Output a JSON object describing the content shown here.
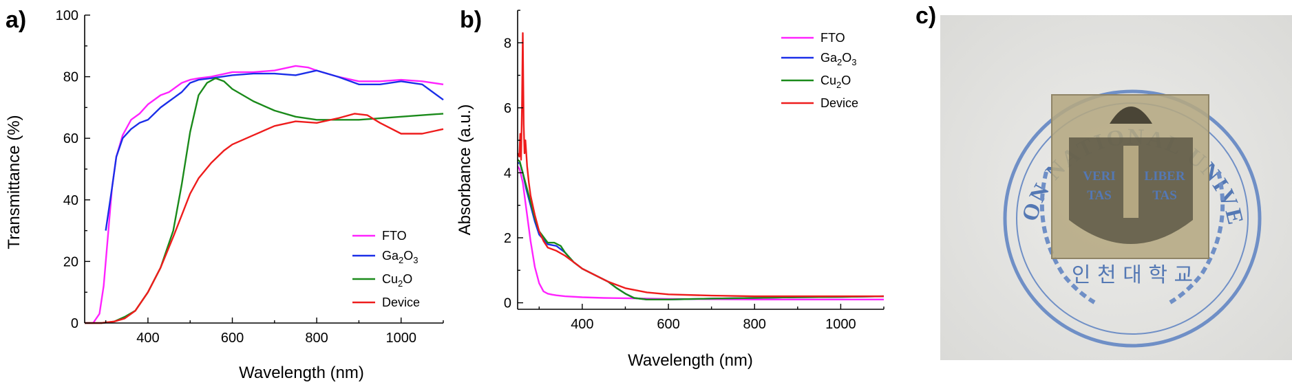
{
  "panel_labels": {
    "a": "a)",
    "b": "b)",
    "c": "c)"
  },
  "colors": {
    "FTO": "#ff22ff",
    "Ga2O3": "#1a2ee8",
    "Cu2O": "#1a8a1a",
    "Device": "#ee1c1c"
  },
  "chart_data": [
    {
      "type": "line",
      "panel": "a)",
      "xlabel": "Wavelength (nm)",
      "ylabel": "Transmittance (%)",
      "xlim": [
        250,
        1100
      ],
      "ylim": [
        0,
        100
      ],
      "xticks": [
        400,
        600,
        800,
        1000
      ],
      "yticks": [
        0,
        20,
        40,
        60,
        80,
        100
      ],
      "legend_position": "bottom-right",
      "series": [
        {
          "name": "FTO",
          "color": "#ff22ff",
          "x": [
            250,
            270,
            285,
            295,
            305,
            315,
            325,
            340,
            360,
            380,
            400,
            430,
            450,
            480,
            500,
            520,
            550,
            600,
            650,
            700,
            750,
            780,
            800,
            850,
            900,
            950,
            1000,
            1050,
            1100
          ],
          "y": [
            0,
            0,
            3,
            12,
            28,
            44,
            54,
            61,
            66,
            68,
            71,
            74,
            75,
            78,
            79,
            79.5,
            80,
            81.5,
            81.5,
            82,
            83.5,
            83,
            82,
            80,
            78.5,
            78.5,
            79,
            78.5,
            77.5
          ]
        },
        {
          "name": "Ga2O3",
          "color": "#1a2ee8",
          "x": [
            300,
            315,
            325,
            340,
            360,
            380,
            400,
            430,
            450,
            480,
            500,
            520,
            550,
            600,
            650,
            700,
            750,
            800,
            850,
            900,
            950,
            1000,
            1050,
            1100
          ],
          "y": [
            30,
            44,
            54,
            60,
            63,
            65,
            66,
            70,
            72,
            75,
            78,
            79,
            79.5,
            80.5,
            81,
            81,
            80.5,
            82,
            80,
            77.5,
            77.5,
            78.5,
            77.5,
            72.5
          ]
        },
        {
          "name": "Cu2O",
          "color": "#1a8a1a",
          "x": [
            250,
            290,
            320,
            345,
            370,
            400,
            430,
            460,
            480,
            500,
            520,
            540,
            560,
            580,
            600,
            650,
            700,
            750,
            800,
            850,
            900,
            950,
            1000,
            1050,
            1100
          ],
          "y": [
            0,
            0,
            0.5,
            2,
            4,
            10,
            18,
            30,
            45,
            62,
            74,
            78,
            79.5,
            78.5,
            76,
            72,
            69,
            67,
            66,
            66,
            66,
            66.5,
            67,
            67.5,
            68
          ]
        },
        {
          "name": "Device",
          "color": "#ee1c1c",
          "x": [
            250,
            290,
            320,
            345,
            370,
            400,
            430,
            460,
            480,
            500,
            520,
            550,
            580,
            600,
            650,
            700,
            750,
            800,
            850,
            890,
            920,
            950,
            1000,
            1050,
            1100
          ],
          "y": [
            0,
            0,
            0.5,
            1.5,
            4,
            10,
            18,
            28,
            35,
            42,
            47,
            52,
            56,
            58,
            61,
            64,
            65.5,
            65,
            66.5,
            68,
            67.5,
            65,
            61.5,
            61.5,
            63
          ]
        }
      ]
    },
    {
      "type": "line",
      "panel": "b)",
      "xlabel": "Wavelength (nm)",
      "ylabel": "Absorbance (a.u.)",
      "xlim": [
        250,
        1100
      ],
      "ylim": [
        -0.2,
        9
      ],
      "xticks": [
        400,
        600,
        800,
        1000
      ],
      "yticks": [
        0,
        2,
        4,
        6,
        8
      ],
      "legend_position": "top-right",
      "series": [
        {
          "name": "FTO",
          "color": "#ff22ff",
          "x": [
            250,
            255,
            262,
            270,
            280,
            290,
            300,
            310,
            320,
            330,
            340,
            360,
            400,
            450,
            500,
            600,
            700,
            800,
            900,
            1000,
            1100
          ],
          "y": [
            4.2,
            4.1,
            3.7,
            2.9,
            1.9,
            1.1,
            0.6,
            0.35,
            0.28,
            0.25,
            0.23,
            0.2,
            0.17,
            0.15,
            0.14,
            0.12,
            0.11,
            0.1,
            0.1,
            0.1,
            0.1
          ]
        },
        {
          "name": "Ga2O3",
          "color": "#1a2ee8",
          "x": [
            250,
            255,
            262,
            270,
            280,
            290,
            300,
            320,
            340,
            360,
            380,
            400,
            430,
            460,
            480,
            500,
            520,
            550,
            600,
            700,
            800,
            900,
            1000,
            1100
          ],
          "y": [
            4.3,
            4.3,
            4.0,
            3.5,
            3.0,
            2.5,
            2.1,
            1.8,
            1.75,
            1.55,
            1.25,
            1.05,
            0.85,
            0.65,
            0.45,
            0.28,
            0.15,
            0.1,
            0.1,
            0.13,
            0.15,
            0.17,
            0.18,
            0.2
          ]
        },
        {
          "name": "Cu2O",
          "color": "#1a8a1a",
          "x": [
            250,
            255,
            262,
            270,
            280,
            290,
            300,
            320,
            335,
            350,
            360,
            380,
            400,
            430,
            460,
            480,
            500,
            520,
            550,
            600,
            700,
            800,
            900,
            1000,
            1100
          ],
          "y": [
            4.4,
            4.35,
            4.0,
            3.6,
            3.1,
            2.6,
            2.2,
            1.85,
            1.85,
            1.75,
            1.55,
            1.25,
            1.05,
            0.85,
            0.65,
            0.45,
            0.28,
            0.15,
            0.1,
            0.1,
            0.13,
            0.15,
            0.17,
            0.18,
            0.2
          ]
        },
        {
          "name": "Device",
          "color": "#ee1c1c",
          "x": [
            250,
            254,
            256,
            258,
            260,
            262,
            264,
            266,
            268,
            272,
            276,
            280,
            290,
            300,
            310,
            320,
            340,
            360,
            380,
            400,
            430,
            460,
            500,
            550,
            600,
            700,
            800,
            900,
            1000,
            1100
          ],
          "y": [
            4.6,
            4.5,
            5.2,
            4.4,
            6.0,
            8.3,
            5.5,
            4.6,
            5.0,
            4.2,
            3.7,
            3.3,
            2.7,
            2.2,
            1.9,
            1.7,
            1.6,
            1.45,
            1.25,
            1.05,
            0.85,
            0.65,
            0.45,
            0.32,
            0.26,
            0.22,
            0.2,
            0.2,
            0.2,
            0.2
          ]
        }
      ]
    }
  ],
  "photo": {
    "seal_top_text": "INCHEON NATIONAL UNIVERSITY",
    "seal_motto": [
      "VERI",
      "LIBER",
      "TAS",
      "TAS"
    ],
    "seal_bottom_text": "인 천 대 학 교"
  }
}
